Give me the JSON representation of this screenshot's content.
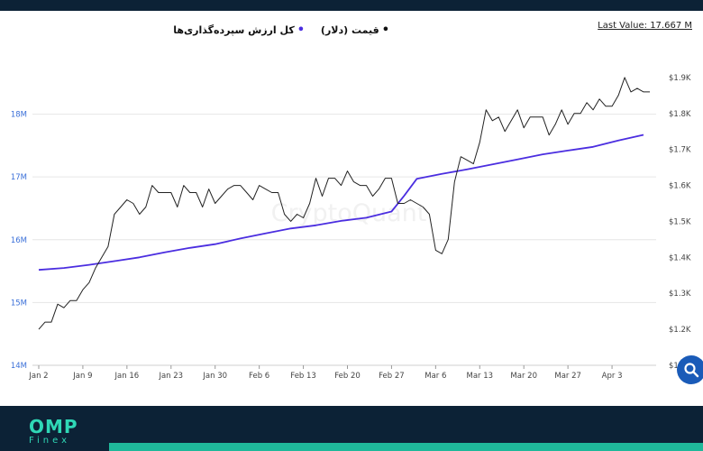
{
  "legend": {
    "items": [
      {
        "label": "قیمت (دلار)",
        "color": "#111111"
      },
      {
        "label": "کل ارزش سپرده‌گذاری‌ها",
        "color": "#4b2ee0"
      }
    ]
  },
  "last_value": "Last Value: 17.667 M",
  "watermark": "CryptoQuant",
  "logo": {
    "main": "OMP",
    "sub": "Finex"
  },
  "colors": {
    "deposits": "#4b2ee0",
    "price": "#222222",
    "left_axis": "#3a6fd8",
    "header": "#0c2236",
    "accent": "#1fb89a"
  },
  "icons": {
    "search": "search-icon"
  },
  "chart_data": {
    "type": "line",
    "title": "",
    "x_tick_labels": [
      "Jan 2",
      "Jan 9",
      "Jan 16",
      "Jan 23",
      "Jan 30",
      "Feb 6",
      "Feb 13",
      "Feb 20",
      "Feb 27",
      "Mar 6",
      "Mar 13",
      "Mar 20",
      "Mar 27",
      "Apr 3"
    ],
    "x_tick_days": [
      0,
      7,
      14,
      21,
      28,
      35,
      42,
      49,
      56,
      63,
      70,
      77,
      84,
      91
    ],
    "x_range_days": [
      -1,
      98
    ],
    "left_axis": {
      "ticks": [
        "14M",
        "15M",
        "16M",
        "17M",
        "18M"
      ],
      "tick_values": [
        14,
        15,
        16,
        17,
        18
      ],
      "range": [
        14,
        19.1
      ]
    },
    "right_axis": {
      "ticks": [
        "$1.1K",
        "$1.2K",
        "$1.3K",
        "$1.4K",
        "$1.5K",
        "$1.6K",
        "$1.7K",
        "$1.8K",
        "$1.9K"
      ],
      "tick_values": [
        1.1,
        1.2,
        1.3,
        1.4,
        1.5,
        1.6,
        1.7,
        1.8,
        1.9
      ],
      "range": [
        1.1,
        1.99
      ]
    },
    "grid": true,
    "series": [
      {
        "name": "کل ارزش سپرده‌گذاری‌ها",
        "axis": "left",
        "x_days": [
          0,
          4,
          8,
          12,
          16,
          20,
          24,
          28,
          32,
          36,
          40,
          44,
          48,
          52,
          56,
          58,
          60,
          64,
          68,
          72,
          76,
          80,
          84,
          88,
          92,
          96
        ],
        "values": [
          15.52,
          15.55,
          15.6,
          15.66,
          15.72,
          15.8,
          15.87,
          15.93,
          16.02,
          16.1,
          16.18,
          16.23,
          16.3,
          16.35,
          16.45,
          16.7,
          16.97,
          17.05,
          17.12,
          17.2,
          17.28,
          17.36,
          17.42,
          17.48,
          17.58,
          17.67
        ]
      },
      {
        "name": "قیمت (دلار)",
        "axis": "right",
        "x_days": [
          0,
          1,
          2,
          3,
          4,
          5,
          6,
          7,
          8,
          9,
          10,
          11,
          12,
          13,
          14,
          15,
          16,
          17,
          18,
          19,
          20,
          21,
          22,
          23,
          24,
          25,
          26,
          27,
          28,
          29,
          30,
          31,
          32,
          33,
          34,
          35,
          36,
          37,
          38,
          39,
          40,
          41,
          42,
          43,
          44,
          45,
          46,
          47,
          48,
          49,
          50,
          51,
          52,
          53,
          54,
          55,
          56,
          57,
          58,
          59,
          60,
          61,
          62,
          63,
          64,
          65,
          66,
          67,
          68,
          69,
          70,
          71,
          72,
          73,
          74,
          75,
          76,
          77,
          78,
          79,
          80,
          81,
          82,
          83,
          84,
          85,
          86,
          87,
          88,
          89,
          90,
          91,
          92,
          93,
          94,
          95,
          96,
          97
        ],
        "values": [
          1.2,
          1.22,
          1.22,
          1.27,
          1.26,
          1.28,
          1.28,
          1.31,
          1.33,
          1.37,
          1.4,
          1.43,
          1.52,
          1.54,
          1.56,
          1.55,
          1.52,
          1.54,
          1.6,
          1.58,
          1.58,
          1.58,
          1.54,
          1.6,
          1.58,
          1.58,
          1.54,
          1.59,
          1.55,
          1.57,
          1.59,
          1.6,
          1.6,
          1.58,
          1.56,
          1.6,
          1.59,
          1.58,
          1.58,
          1.52,
          1.5,
          1.52,
          1.51,
          1.55,
          1.62,
          1.57,
          1.62,
          1.62,
          1.6,
          1.64,
          1.61,
          1.6,
          1.6,
          1.57,
          1.59,
          1.62,
          1.62,
          1.55,
          1.55,
          1.56,
          1.55,
          1.54,
          1.52,
          1.42,
          1.41,
          1.45,
          1.61,
          1.68,
          1.67,
          1.66,
          1.72,
          1.81,
          1.78,
          1.79,
          1.75,
          1.78,
          1.81,
          1.76,
          1.79,
          1.79,
          1.79,
          1.74,
          1.77,
          1.81,
          1.77,
          1.8,
          1.8,
          1.83,
          1.81,
          1.84,
          1.82,
          1.82,
          1.85,
          1.9,
          1.86,
          1.87,
          1.86,
          1.86
        ]
      }
    ]
  }
}
